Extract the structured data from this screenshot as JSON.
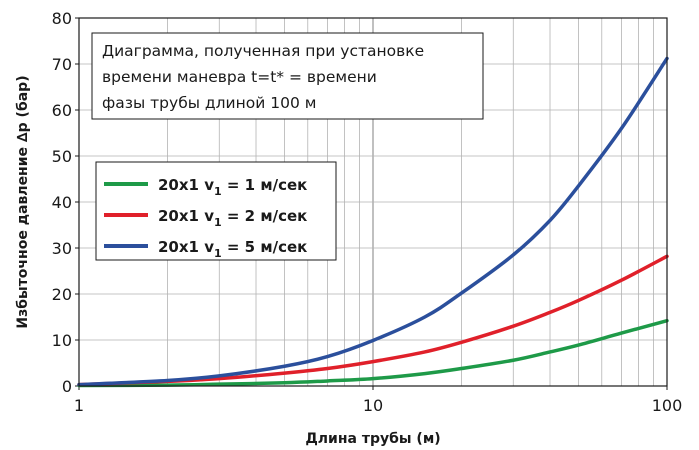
{
  "chart_data": {
    "type": "line",
    "title": "",
    "xlabel": "Длина трубы (м)",
    "ylabel": "Избыточное давление ∆p (бар)",
    "x_scale": "log",
    "xlim": [
      1,
      100
    ],
    "ylim": [
      0,
      80
    ],
    "x_ticks": [
      "1",
      "10",
      "100"
    ],
    "y_ticks": [
      "0",
      "10",
      "20",
      "30",
      "40",
      "50",
      "60",
      "70",
      "80"
    ],
    "grid": true,
    "annotation": [
      "Диаграмма, полученная при установке",
      "времени маневра t=t* = времени",
      "фазы трубы длиной 100 м"
    ],
    "legend_position": "left",
    "series": [
      {
        "name": "20x1 v1 = 1 м/сек",
        "label_main": "20x1 v",
        "label_sub": "1",
        "label_tail": " = 1 м/сек",
        "color": "#1e9a48",
        "x": [
          1,
          2,
          3,
          5,
          7,
          10,
          15,
          20,
          30,
          40,
          50,
          70,
          100
        ],
        "y": [
          0.1,
          0.2,
          0.4,
          0.7,
          1.1,
          1.6,
          2.7,
          3.8,
          5.6,
          7.4,
          8.9,
          11.5,
          14.2
        ]
      },
      {
        "name": "20x1 v1 = 2 м/сек",
        "label_main": "20x1 v",
        "label_sub": "1",
        "label_tail": " = 2 м/сек",
        "color": "#e0202a",
        "x": [
          1,
          2,
          3,
          5,
          7,
          10,
          15,
          20,
          30,
          40,
          50,
          70,
          100
        ],
        "y": [
          0.3,
          1.0,
          1.6,
          2.8,
          3.8,
          5.3,
          7.4,
          9.5,
          13.0,
          16.0,
          18.6,
          23.0,
          28.2
        ]
      },
      {
        "name": "20x1 v1 = 5 м/сек",
        "label_main": "20x1 v",
        "label_sub": "1",
        "label_tail": " = 5 м/сек",
        "color": "#2b4f9c",
        "x": [
          1,
          2,
          3,
          5,
          7,
          10,
          15,
          20,
          30,
          40,
          50,
          70,
          100
        ],
        "y": [
          0.3,
          1.2,
          2.2,
          4.3,
          6.4,
          9.9,
          15.0,
          20.2,
          28.5,
          36.0,
          43.5,
          56.0,
          71.2
        ]
      }
    ]
  }
}
